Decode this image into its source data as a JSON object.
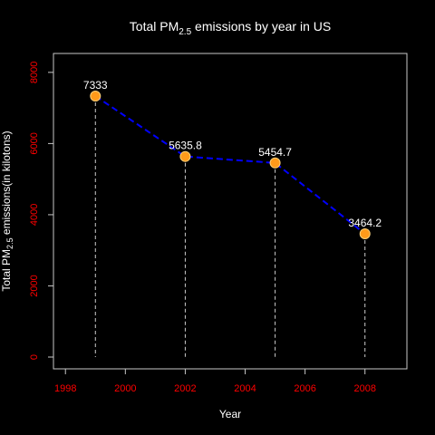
{
  "chart_data": {
    "type": "line",
    "title_main": "Total PM",
    "title_sub": "2.5",
    "title_rest": " emissions by year in US",
    "xlabel": "Year",
    "ylabel_main": "Total PM",
    "ylabel_sub": "2.5",
    "ylabel_rest": " emissions(in kilotons)",
    "x": [
      1999,
      2002,
      2005,
      2008
    ],
    "values": [
      7333,
      5635.8,
      5454.7,
      3464.2
    ],
    "value_labels": [
      "7333",
      "5635.8",
      "5454.7",
      "3464.2"
    ],
    "xlim": [
      1997.6,
      2009.4
    ],
    "ylim": [
      0,
      8200
    ],
    "x_ticks": [
      1998,
      2000,
      2002,
      2004,
      2006,
      2008
    ],
    "y_ticks": [
      0,
      2000,
      4000,
      6000,
      8000
    ],
    "grid": false,
    "colors": {
      "background": "#000000",
      "line": "#0000ff",
      "point": "#ff9a1a",
      "drop_line": "#cccccc",
      "tick_label": "#ff0000",
      "text": "#ffffff",
      "axis": "#c8c8c8"
    }
  }
}
